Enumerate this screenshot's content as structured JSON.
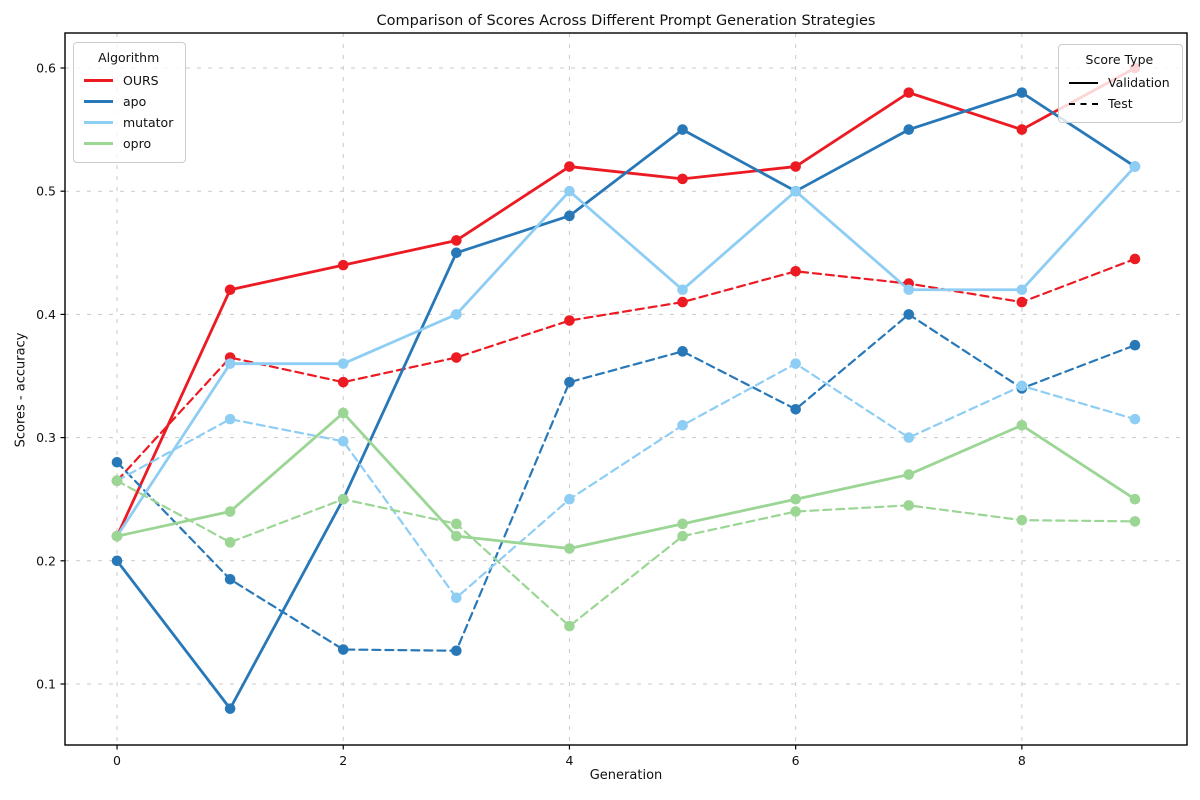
{
  "chart_data": {
    "type": "line",
    "title": "Comparison of Scores Across Different Prompt Generation Strategies",
    "xlabel": "Generation",
    "ylabel": "Scores - accuracy",
    "x": [
      0,
      1,
      2,
      3,
      4,
      5,
      6,
      7,
      8,
      9
    ],
    "xticks": [
      0,
      2,
      4,
      6,
      8
    ],
    "yticks": [
      0.1,
      0.2,
      0.3,
      0.4,
      0.5,
      0.6
    ],
    "xlim": [
      -0.46,
      9.46
    ],
    "ylim": [
      0.0505,
      0.6284
    ],
    "grid": true,
    "legend_algorithm": {
      "title": "Algorithm",
      "position": "upper-left"
    },
    "legend_scoretype": {
      "title": "Score Type",
      "position": "upper-right",
      "items": [
        {
          "label": "Validation",
          "line": "solid"
        },
        {
          "label": "Test",
          "line": "dashed"
        }
      ]
    },
    "series": [
      {
        "name": "OURS",
        "color": "#EC1B23",
        "validation": [
          0.22,
          0.42,
          0.44,
          0.46,
          0.52,
          0.51,
          0.52,
          0.58,
          0.55,
          0.6
        ],
        "test": [
          0.265,
          0.365,
          0.345,
          0.365,
          0.395,
          0.41,
          0.435,
          0.425,
          0.41,
          0.445
        ]
      },
      {
        "name": "apo",
        "color": "#2878B8",
        "validation": [
          0.2,
          0.08,
          0.25,
          0.45,
          0.48,
          0.55,
          0.5,
          0.55,
          0.58,
          0.52
        ],
        "test": [
          0.28,
          0.185,
          0.128,
          0.127,
          0.345,
          0.37,
          0.323,
          0.4,
          0.34,
          0.375
        ]
      },
      {
        "name": "mutator",
        "color": "#8ECDF4",
        "validation": [
          0.22,
          0.36,
          0.36,
          0.4,
          0.5,
          0.42,
          0.5,
          0.42,
          0.42,
          0.52
        ],
        "test": [
          0.265,
          0.315,
          0.297,
          0.17,
          0.25,
          0.31,
          0.36,
          0.3,
          0.342,
          0.315
        ]
      },
      {
        "name": "opro",
        "color": "#9BD695",
        "validation": [
          0.22,
          0.24,
          0.32,
          0.22,
          0.21,
          0.23,
          0.25,
          0.27,
          0.31,
          0.25
        ],
        "test": [
          0.265,
          0.215,
          0.25,
          0.23,
          0.147,
          0.22,
          0.24,
          0.245,
          0.233,
          0.232
        ]
      }
    ]
  }
}
